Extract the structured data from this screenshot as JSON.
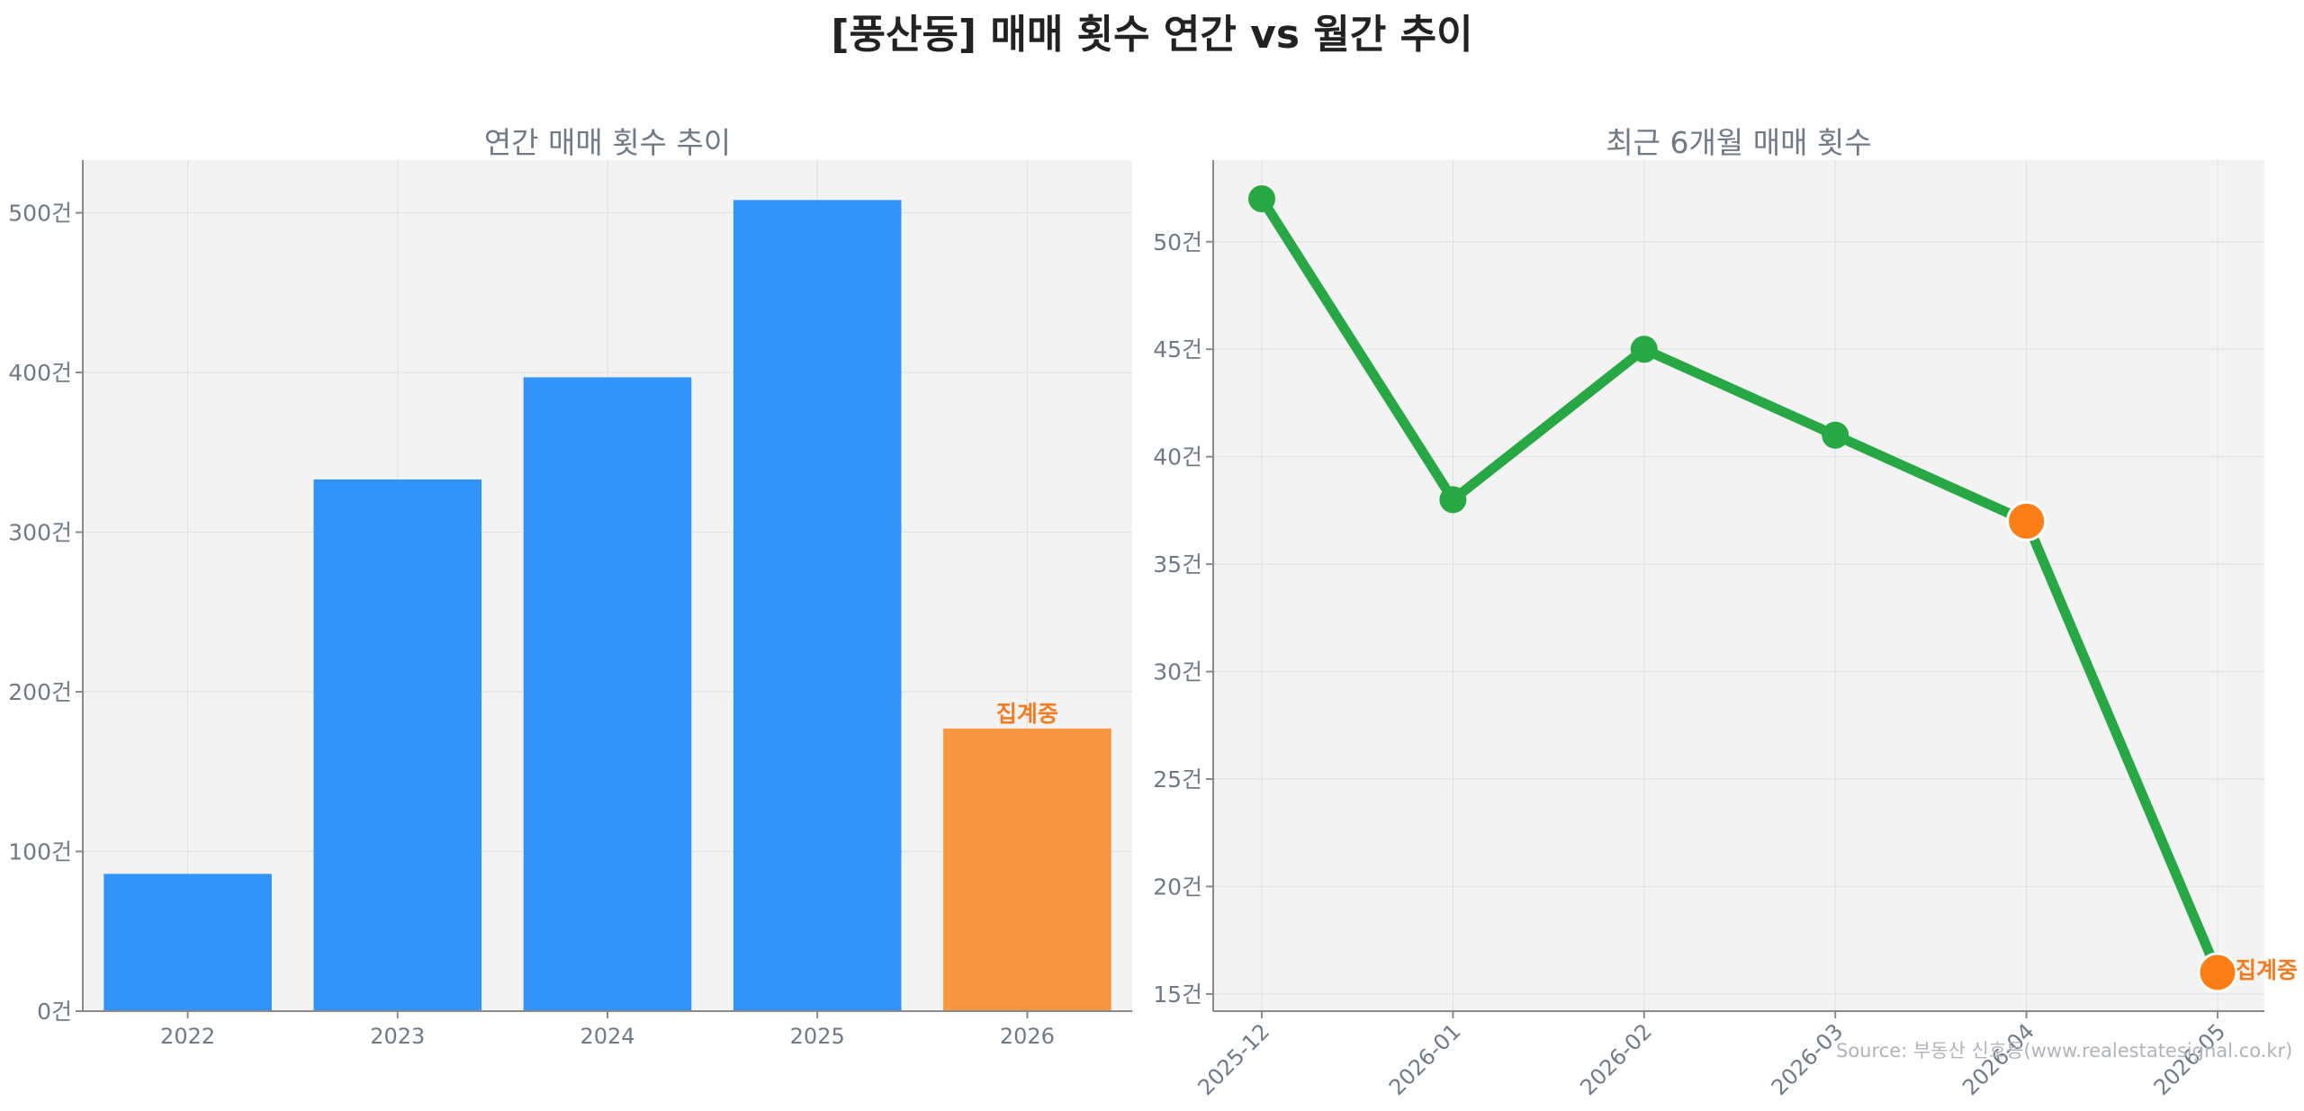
{
  "title": "[풍산동] 매매 횟수 연간 vs 월간 추이",
  "source": "Source: 부동산 신호등(www.realestatesignal.co.kr)",
  "colors": {
    "bar": "#3293fa",
    "bar_partial": "#f99740",
    "line": "#28a745",
    "marker": "#28a745",
    "marker_highlight": "#fd7e14",
    "annotation": "#f47c20",
    "plot_bg": "#f3f3f3",
    "grid": "#e2e2e2",
    "axis": "#8a8a8a",
    "tick_label": "#707a86"
  },
  "chart_data": [
    {
      "type": "bar",
      "title": "연간 매매 횟수 추이",
      "categories": [
        "2022",
        "2023",
        "2024",
        "2025",
        "2026"
      ],
      "values": [
        86,
        333,
        397,
        508,
        177
      ],
      "highlight_index": 4,
      "annotation": {
        "index": 4,
        "text": "집계중"
      },
      "ylim": [
        0,
        533
      ],
      "yticks": [
        0,
        100,
        200,
        300,
        400,
        500
      ],
      "ytick_labels": [
        "0건",
        "100건",
        "200건",
        "300건",
        "400건",
        "500건"
      ],
      "grid": true
    },
    {
      "type": "line",
      "title": "최근 6개월 매매 횟수",
      "categories": [
        "2025-12",
        "2026-01",
        "2026-02",
        "2026-03",
        "2026-04",
        "2026-05"
      ],
      "values": [
        52,
        38,
        45,
        41,
        37,
        16
      ],
      "highlight_indices": [
        4,
        5
      ],
      "annotation": {
        "index": 5,
        "text": "집계중"
      },
      "ylim": [
        14.2,
        53.8
      ],
      "yticks": [
        15,
        20,
        25,
        30,
        35,
        40,
        45,
        50
      ],
      "ytick_labels": [
        "15건",
        "20건",
        "25건",
        "30건",
        "35건",
        "40건",
        "45건",
        "50건"
      ],
      "grid": true
    }
  ]
}
